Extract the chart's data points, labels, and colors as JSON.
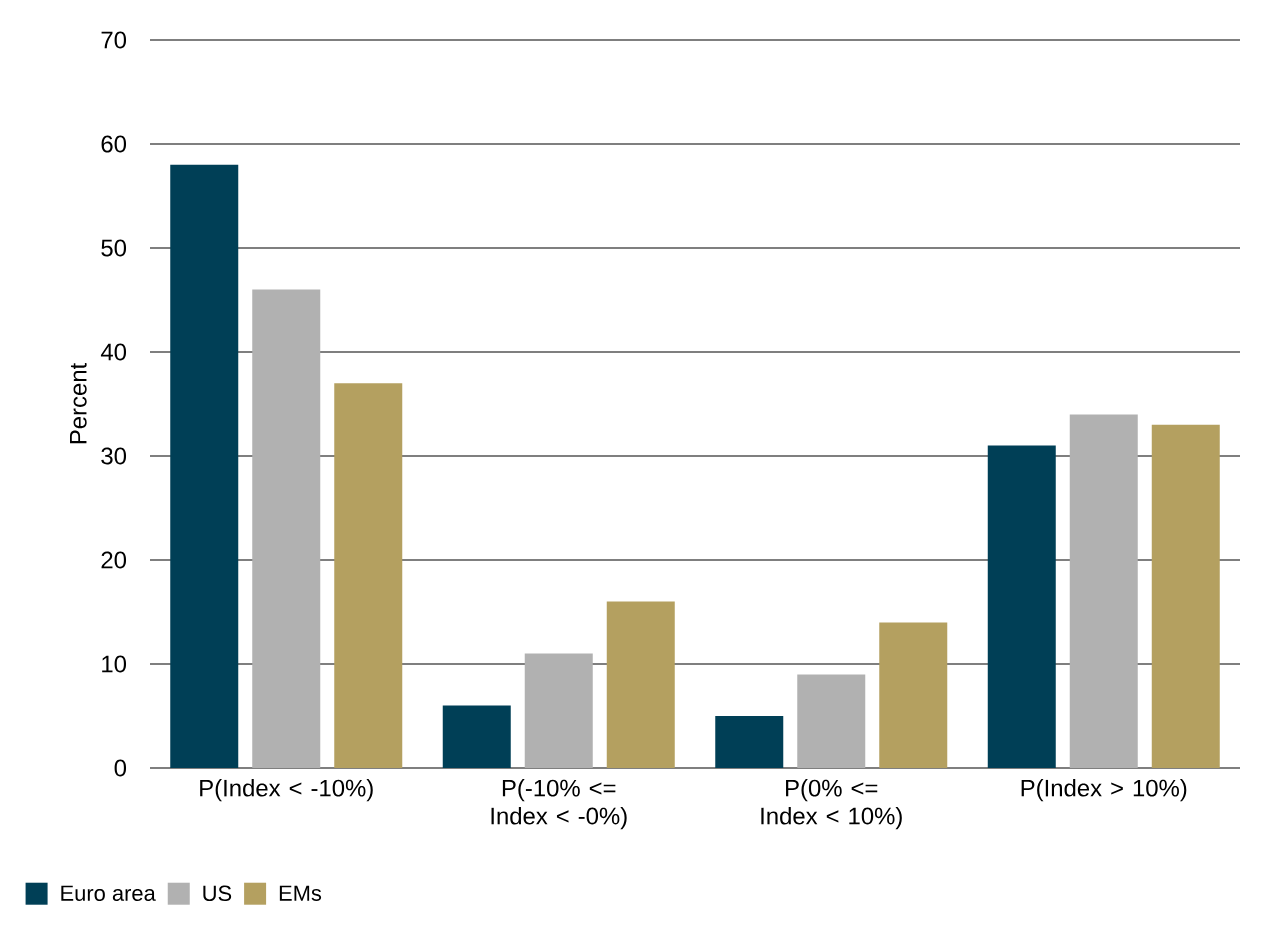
{
  "chart_data": {
    "type": "bar",
    "ylabel": "Percent",
    "categories": [
      "P(Index < -10%)",
      "P(-10% <= Index < -0%)",
      "P(0% <= Index < 10%)",
      "P(Index > 10%)"
    ],
    "series": [
      {
        "name": "Euro area",
        "color": "#003f56",
        "values": [
          58,
          6,
          5,
          31
        ]
      },
      {
        "name": "US",
        "color": "#b1b1b1",
        "values": [
          46,
          11,
          9,
          34
        ]
      },
      {
        "name": "EMs",
        "color": "#b4a060",
        "values": [
          37,
          16,
          14,
          33
        ]
      }
    ],
    "ylim": [
      0,
      70
    ],
    "yticks": [
      0,
      10,
      20,
      30,
      40,
      50,
      60,
      70
    ],
    "grid": "y",
    "legend": "bottom left"
  }
}
